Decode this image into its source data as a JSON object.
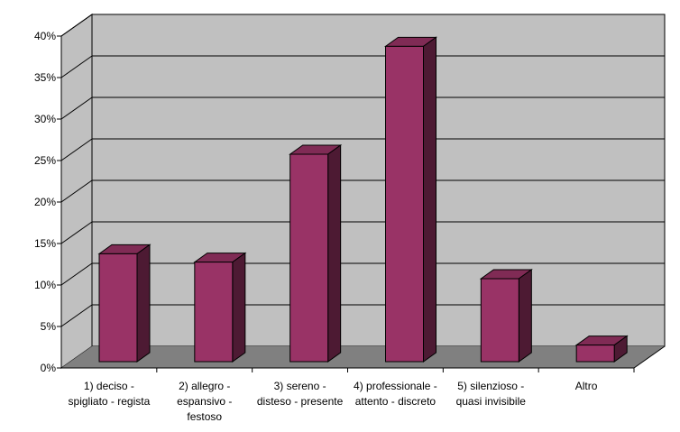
{
  "chart_data": {
    "type": "bar",
    "title": "",
    "xlabel": "",
    "ylabel": "",
    "ylim": [
      0,
      0.4
    ],
    "yticks": [
      "0%",
      "5%",
      "10%",
      "15%",
      "20%",
      "25%",
      "30%",
      "35%",
      "40%"
    ],
    "categories": [
      [
        "1) deciso -",
        "spigliato -   regista"
      ],
      [
        "2) allegro -",
        "espansivo -",
        "festoso"
      ],
      [
        "3) sereno -",
        "disteso - presente"
      ],
      [
        "4) professionale -",
        "attento - discreto"
      ],
      [
        "5) silenzioso -",
        "quasi invisibile"
      ],
      [
        "Altro"
      ]
    ],
    "values": [
      0.13,
      0.12,
      0.25,
      0.38,
      0.1,
      0.02
    ],
    "grid": true,
    "legend": "none",
    "style": "3d-column",
    "colors": {
      "bar_front": "#993366",
      "bar_top": "#802b55",
      "bar_side": "#4d1a33",
      "wall": "#c0c0c0",
      "floor": "#808080",
      "grid": "#000000"
    }
  }
}
